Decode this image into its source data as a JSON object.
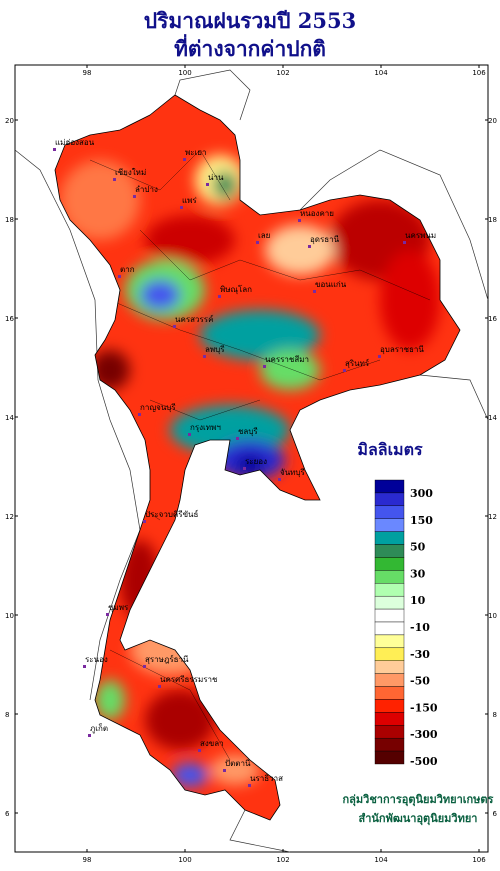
{
  "title": [
    "ปริมาณฝนรวมปี 2553",
    "ที่ต่างจากค่าปกติ"
  ],
  "map": {
    "lon_ticks": [
      98,
      100,
      102,
      104,
      106
    ],
    "lat_ticks": [
      20,
      18,
      16,
      14,
      12,
      10,
      8,
      6
    ],
    "places": [
      "แม่ฮ่องสอน",
      "เชียงใหม่",
      "ลำปาง",
      "พะเยา",
      "น่าน",
      "แพร่",
      "หนองคาย",
      "นครพนม",
      "เลย",
      "อุดรธานี",
      "ขอนแก่น",
      "ตาก",
      "พิษณุโลก",
      "นครสวรรค์",
      "ลพบุรี",
      "นครราชสีมา",
      "สุรินทร์",
      "อุบลราชธานี",
      "กาญจนบุรี",
      "กรุงเทพฯ",
      "ชลบุรี",
      "ระยอง",
      "จันทบุรี",
      "ประจวบคีรีขันธ์",
      "ชุมพร",
      "ระนอง",
      "สุราษฎร์ธานี",
      "นครศรีธรรมราช",
      "ภูเก็ต",
      "สงขลา",
      "ปัตตานี",
      "นราธิวาส"
    ]
  },
  "legend": {
    "title": "มิลลิเมตร",
    "colors": [
      "#000099",
      "#2a2ad0",
      "#4455ee",
      "#6a88ff",
      "#00a0a0",
      "#2e8b57",
      "#33b833",
      "#66dd66",
      "#b0ffb0",
      "#dcffdc",
      "#ffffff",
      "#ffffff",
      "#ffff99",
      "#ffee55",
      "#ffcc99",
      "#ff9966",
      "#ff6633",
      "#ff2200",
      "#dd0000",
      "#aa0000",
      "#770000",
      "#550000"
    ],
    "labels": [
      300,
      150,
      50,
      30,
      10,
      -10,
      -30,
      -50,
      -150,
      -300,
      -500
    ]
  },
  "credits": [
    "กลุ่มวิชาการอุตุนิยมวิทยาเกษตร",
    "สำนักพัฒนาอุตุนิยมวิทยา"
  ]
}
